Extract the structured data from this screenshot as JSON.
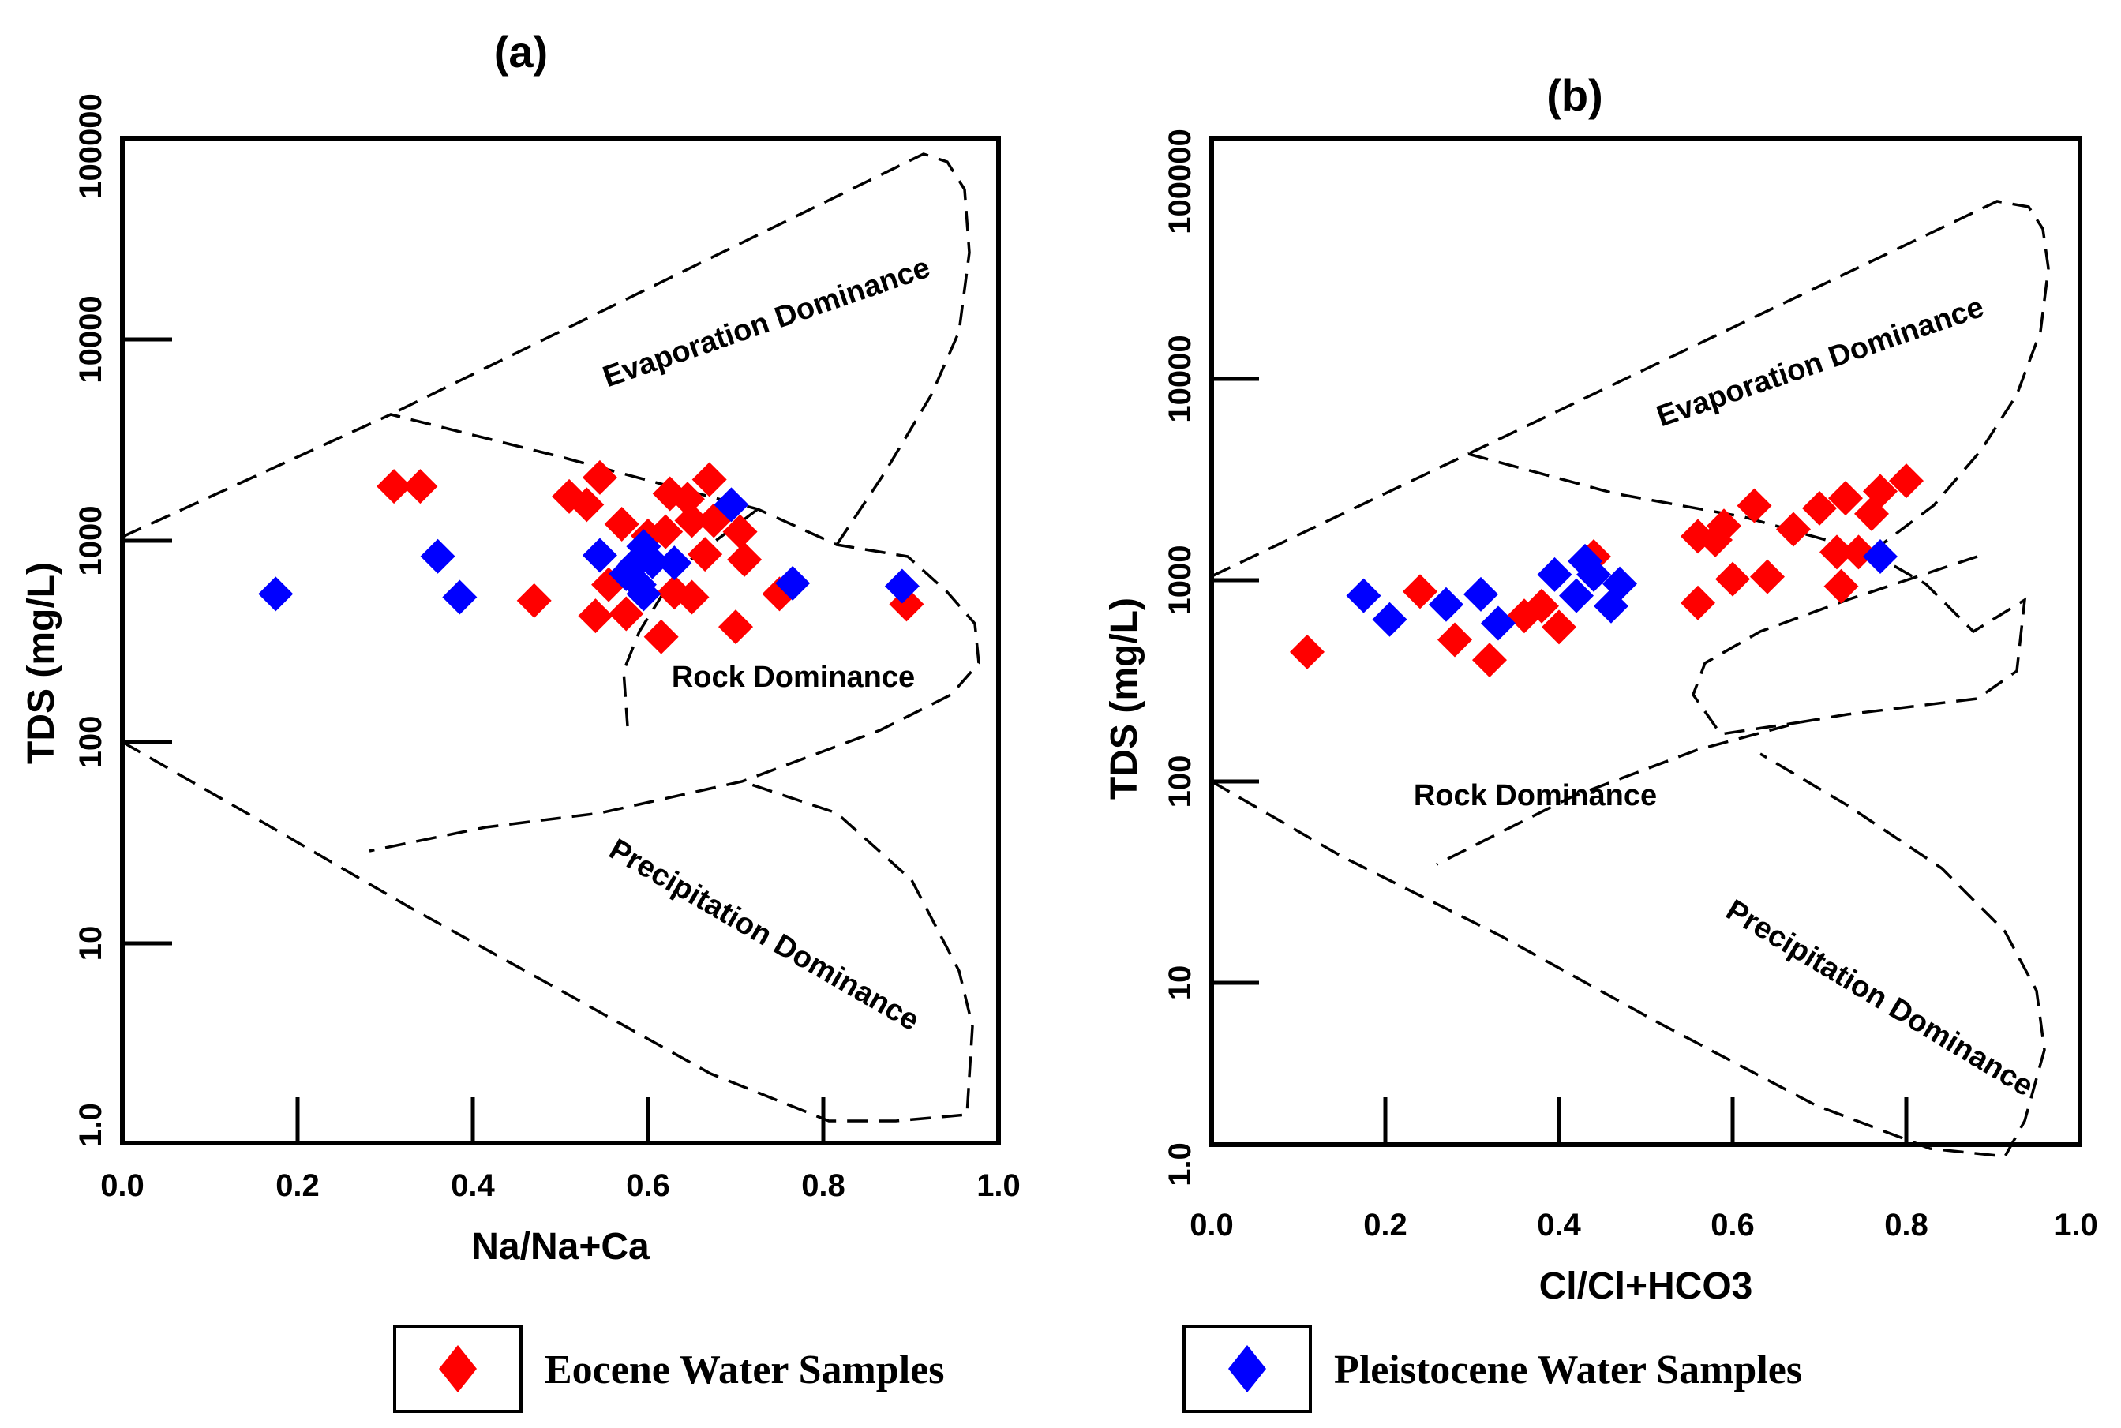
{
  "legend": {
    "eocene_label": "Eocene Water Samples",
    "pleistocene_label": "Pleistocene Water Samples"
  },
  "chart_data": [
    {
      "type": "scatter",
      "title": "(a)",
      "xlabel": "Na/Na+Ca",
      "ylabel": "TDS (mg/L)",
      "xlim": [
        0,
        1
      ],
      "ylim": [
        1,
        100000
      ],
      "yscale": "log",
      "x_ticks": [
        "0.0",
        "0.2",
        "0.4",
        "0.6",
        "0.8",
        "1.0"
      ],
      "y_ticks": [
        "1.0",
        "10",
        "100",
        "1000",
        "10000",
        "100000"
      ],
      "regions": [
        "Evaporation Dominance",
        "Rock Dominance",
        "Precipitation Dominance"
      ],
      "series": [
        {
          "name": "Eocene Water Samples",
          "color": "#ff0000",
          "points": [
            [
              0.31,
              1850
            ],
            [
              0.34,
              1850
            ],
            [
              0.47,
              500
            ],
            [
              0.51,
              1650
            ],
            [
              0.53,
              1500
            ],
            [
              0.545,
              2050
            ],
            [
              0.54,
              420
            ],
            [
              0.555,
              600
            ],
            [
              0.57,
              1200
            ],
            [
              0.575,
              430
            ],
            [
              0.6,
              1050
            ],
            [
              0.615,
              330
            ],
            [
              0.62,
              1100
            ],
            [
              0.625,
              1700
            ],
            [
              0.63,
              550
            ],
            [
              0.645,
              1600
            ],
            [
              0.65,
              1250
            ],
            [
              0.65,
              520
            ],
            [
              0.665,
              850
            ],
            [
              0.67,
              2000
            ],
            [
              0.675,
              1250
            ],
            [
              0.7,
              370
            ],
            [
              0.705,
              1100
            ],
            [
              0.71,
              800
            ],
            [
              0.75,
              540
            ],
            [
              0.895,
              480
            ]
          ]
        },
        {
          "name": "Pleistocene Water Samples",
          "color": "#0000ff",
          "points": [
            [
              0.175,
              540
            ],
            [
              0.36,
              830
            ],
            [
              0.385,
              520
            ],
            [
              0.545,
              840
            ],
            [
              0.575,
              680
            ],
            [
              0.585,
              760
            ],
            [
              0.59,
              600
            ],
            [
              0.595,
              930
            ],
            [
              0.595,
              540
            ],
            [
              0.605,
              780
            ],
            [
              0.63,
              770
            ],
            [
              0.695,
              1500
            ],
            [
              0.765,
              610
            ],
            [
              0.89,
              590
            ]
          ]
        }
      ]
    },
    {
      "type": "scatter",
      "title": "(b)",
      "xlabel": "Cl/Cl+HCO3",
      "ylabel": "TDS (mg/L)",
      "xlim": [
        0,
        1
      ],
      "ylim": [
        1,
        100000
      ],
      "yscale": "log",
      "x_ticks": [
        "0.0",
        "0.2",
        "0.4",
        "0.6",
        "0.8",
        "1.0"
      ],
      "y_ticks": [
        "1.0",
        "10",
        "100",
        "1000",
        "10000",
        "100000"
      ],
      "regions": [
        "Evaporation Dominance",
        "Rock Dominance",
        "Precipitation Dominance"
      ],
      "series": [
        {
          "name": "Eocene Water Samples",
          "color": "#ff0000",
          "points": [
            [
              0.11,
              350
            ],
            [
              0.24,
              680
            ],
            [
              0.28,
              400
            ],
            [
              0.32,
              320
            ],
            [
              0.36,
              520
            ],
            [
              0.38,
              580
            ],
            [
              0.4,
              460
            ],
            [
              0.44,
              1000
            ],
            [
              0.56,
              1250
            ],
            [
              0.56,
              600
            ],
            [
              0.58,
              1200
            ],
            [
              0.59,
              1400
            ],
            [
              0.6,
              780
            ],
            [
              0.625,
              1750
            ],
            [
              0.64,
              800
            ],
            [
              0.67,
              1350
            ],
            [
              0.7,
              1700
            ],
            [
              0.72,
              1050
            ],
            [
              0.725,
              720
            ],
            [
              0.73,
              1900
            ],
            [
              0.745,
              1050
            ],
            [
              0.76,
              1600
            ],
            [
              0.77,
              2050
            ],
            [
              0.8,
              2300
            ]
          ]
        },
        {
          "name": "Pleistocene Water Samples",
          "color": "#0000ff",
          "points": [
            [
              0.175,
              650
            ],
            [
              0.205,
              500
            ],
            [
              0.27,
              590
            ],
            [
              0.31,
              660
            ],
            [
              0.33,
              480
            ],
            [
              0.395,
              820
            ],
            [
              0.42,
              650
            ],
            [
              0.43,
              950
            ],
            [
              0.44,
              820
            ],
            [
              0.46,
              580
            ],
            [
              0.47,
              740
            ],
            [
              0.77,
              1000
            ]
          ]
        }
      ]
    }
  ]
}
